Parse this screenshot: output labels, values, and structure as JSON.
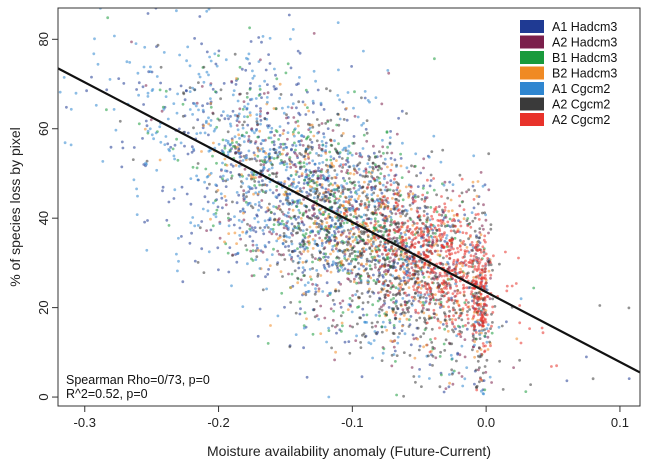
{
  "chart_data": {
    "type": "scatter",
    "title": "",
    "xlabel": "Moisture availability anomaly (Future-Current)",
    "ylabel": "% of species loss by pixel",
    "xlim": [
      -0.32,
      0.115
    ],
    "ylim": [
      -2,
      87
    ],
    "x_ticks": [
      -0.3,
      -0.2,
      -0.1,
      0.0,
      0.1
    ],
    "x_tick_labels": [
      "-0.3",
      "-0.2",
      "-0.1",
      "0.0",
      "0.1"
    ],
    "y_ticks": [
      0,
      20,
      40,
      60,
      80
    ],
    "y_tick_labels": [
      "0",
      "20",
      "40",
      "60",
      "80"
    ],
    "grid": false,
    "legend_position": "top-right",
    "series": [
      {
        "name": "A1 Hadcm3",
        "color": "#1f3a93"
      },
      {
        "name": "A2 Hadcm3",
        "color": "#7b1f4b"
      },
      {
        "name": "B1 Hadcm3",
        "color": "#1a9a3c"
      },
      {
        "name": "B2 Hadcm3",
        "color": "#f08a24"
      },
      {
        "name": "A1 Cgcm2",
        "color": "#2f86d0"
      },
      {
        "name": "A2 Cgcm2",
        "color": "#3a3a3a"
      },
      {
        "name": "A2 Cgcm2",
        "color": "#e8322a"
      }
    ],
    "regression_line": {
      "color": "#111111",
      "points": [
        {
          "x": -0.32,
          "y": 73.5
        },
        {
          "x": 0.115,
          "y": 5.5
        }
      ]
    },
    "point_clouds": [
      {
        "series": 0,
        "x": -0.12,
        "y": 42,
        "sx": 0.065,
        "sy": 13,
        "n": 700
      },
      {
        "series": 1,
        "x": -0.09,
        "y": 38,
        "sx": 0.06,
        "sy": 12,
        "n": 500
      },
      {
        "series": 2,
        "x": -0.11,
        "y": 40,
        "sx": 0.06,
        "sy": 12,
        "n": 450
      },
      {
        "series": 3,
        "x": -0.09,
        "y": 36,
        "sx": 0.055,
        "sy": 10,
        "n": 450
      },
      {
        "series": 4,
        "x": -0.14,
        "y": 46,
        "sx": 0.07,
        "sy": 14,
        "n": 700
      },
      {
        "series": 5,
        "x": -0.08,
        "y": 34,
        "sx": 0.055,
        "sy": 11,
        "n": 850
      },
      {
        "series": 6,
        "x": -0.03,
        "y": 30,
        "sx": 0.03,
        "sy": 7,
        "n": 600
      }
    ],
    "annotations": [
      "Spearman Rho=0/73, p=0",
      "R^2=0.52, p=0"
    ]
  }
}
